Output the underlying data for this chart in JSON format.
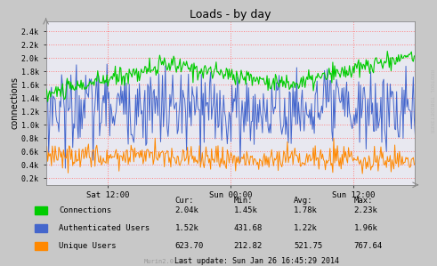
{
  "title": "Loads - by day",
  "ylabel": "connections",
  "bg_color": "#c8c8c8",
  "plot_bg_color": "#e8e8f0",
  "grid_color": "#ff8080",
  "grid_style": ":",
  "yticks": [
    0.2,
    0.4,
    0.6,
    0.8,
    1.0,
    1.2,
    1.4,
    1.6,
    1.8,
    2.0,
    2.2,
    2.4
  ],
  "ytick_labels": [
    "0.2k",
    "0.4k",
    "0.6k",
    "0.8k",
    "1.0k",
    "1.2k",
    "1.4k",
    "1.6k",
    "1.8k",
    "2.0k",
    "2.2k",
    "2.4k"
  ],
  "xtick_labels": [
    "Sat 12:00",
    "Sun 00:00",
    "Sun 12:00"
  ],
  "ymin": 0.1,
  "ymax": 2.55,
  "right_label": "RRDTOOL TOBIOETIKER",
  "legend_labels": [
    "Connections",
    "Authenticated Users",
    "Unique Users"
  ],
  "legend_colors": [
    "#00cc00",
    "#4466cc",
    "#ff8800"
  ],
  "stats_headers": [
    "Cur:",
    "Min:",
    "Avg:",
    "Max:"
  ],
  "stats_values": [
    [
      "2.04k",
      "1.45k",
      "1.78k",
      "2.23k"
    ],
    [
      "1.52k",
      "431.68",
      "1.22k",
      "1.96k"
    ],
    [
      "623.70",
      "212.82",
      "521.75",
      "767.64"
    ]
  ],
  "last_update": "Last update: Sun Jan 26 16:45:29 2014",
  "munin_version": "Murin2.0.19",
  "connections_color": "#00cc00",
  "auth_users_color": "#4466cc",
  "unique_users_color": "#ff8800",
  "n_points": 400
}
